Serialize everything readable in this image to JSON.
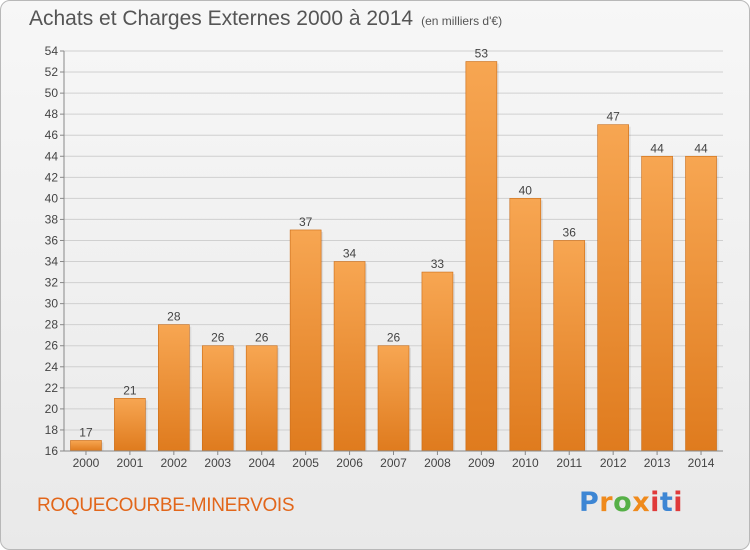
{
  "chart_data": {
    "type": "bar",
    "title": "Achats et Charges Externes 2000 à 2014",
    "subtitle": "(en milliers d'€)",
    "categories": [
      "2000",
      "2001",
      "2002",
      "2003",
      "2004",
      "2005",
      "2006",
      "2007",
      "2008",
      "2009",
      "2010",
      "2011",
      "2012",
      "2013",
      "2014"
    ],
    "values": [
      17,
      21,
      28,
      26,
      26,
      37,
      34,
      26,
      33,
      53,
      40,
      36,
      47,
      44,
      44
    ],
    "ylim": [
      16,
      54
    ],
    "yticks": [
      16,
      18,
      20,
      22,
      24,
      26,
      28,
      30,
      32,
      34,
      36,
      38,
      40,
      42,
      44,
      46,
      48,
      50,
      52,
      54
    ],
    "grid": true,
    "bar_color_top": "#f7a652",
    "bar_color_bottom": "#df7b1e"
  },
  "footer": {
    "commune": "ROQUECOURBE-MINERVOIS",
    "logo": "Proxiti"
  }
}
